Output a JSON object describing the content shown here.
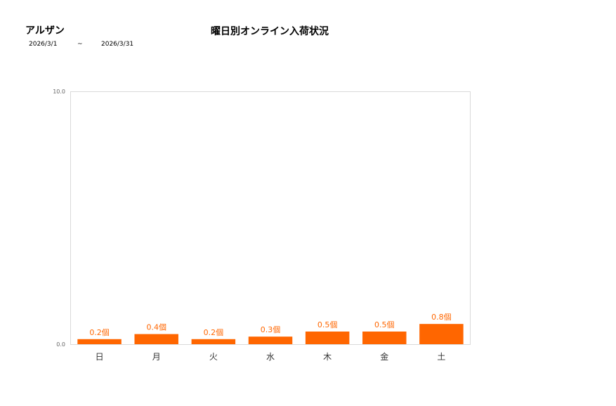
{
  "header": {
    "store_name": "アルザン",
    "date_from": "2026/3/1",
    "date_separator": "~",
    "date_to": "2026/3/31"
  },
  "chart_data": {
    "type": "bar",
    "title": "曜日別オンライン入荷状況",
    "categories": [
      "日",
      "月",
      "火",
      "水",
      "木",
      "金",
      "土"
    ],
    "values": [
      0.2,
      0.4,
      0.2,
      0.3,
      0.5,
      0.5,
      0.8
    ],
    "data_labels": [
      "0.2個",
      "0.4個",
      "0.2個",
      "0.3個",
      "0.5個",
      "0.5個",
      "0.8個"
    ],
    "y_ticks": [
      "0.0",
      "10.0"
    ],
    "ylim": [
      0,
      10
    ],
    "bar_color": "#ff6600",
    "grid": false,
    "legend": "none"
  }
}
